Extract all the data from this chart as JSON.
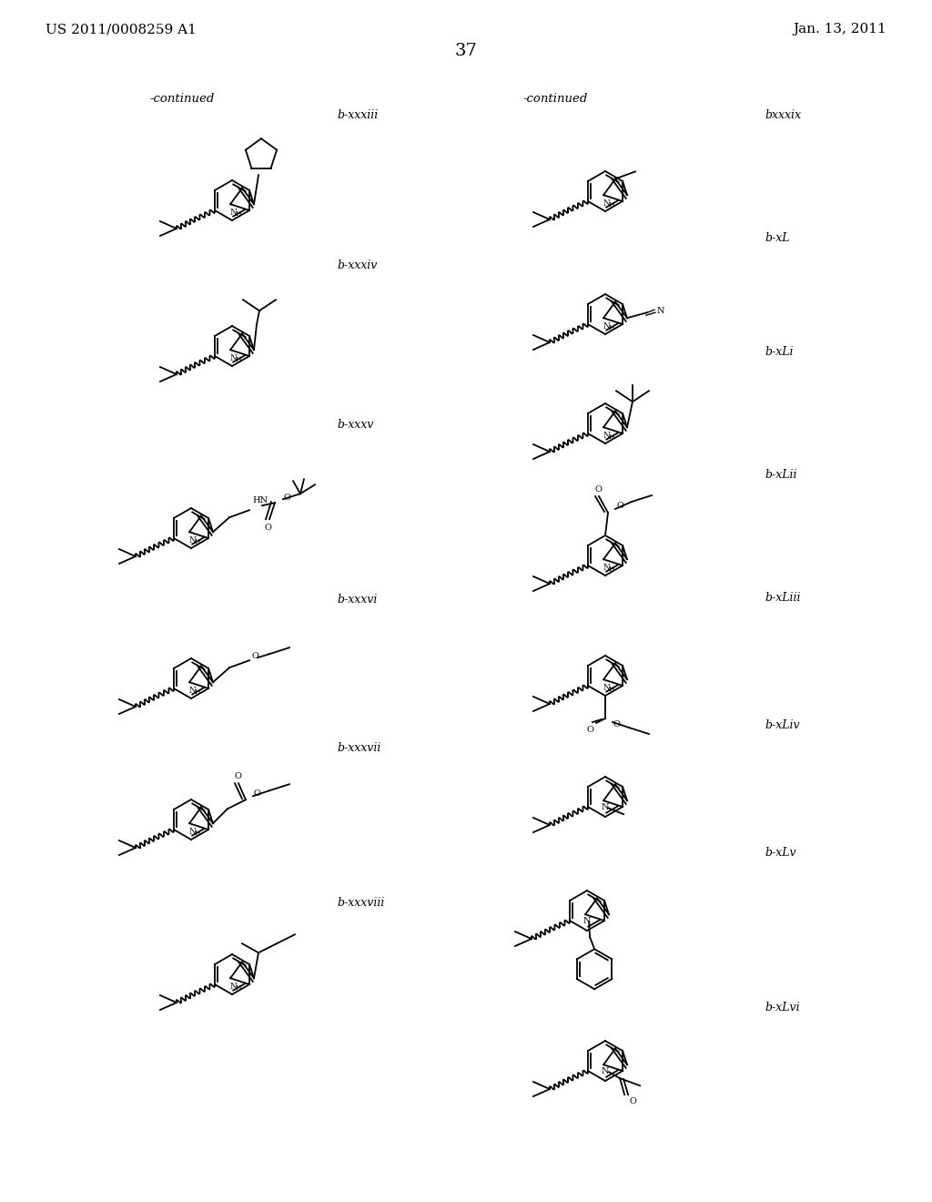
{
  "page_header_left": "US 2011/0008259 A1",
  "page_header_right": "Jan. 13, 2011",
  "page_number": "37",
  "continued_left": "-continued",
  "continued_right": "-continued",
  "background_color": "#ffffff",
  "text_color": "#000000",
  "labels_left": [
    "b-xxxiii",
    "b-xxxiv",
    "b-xxxv",
    "b-xxxvi",
    "b-xxxvii",
    "b-xxxviii"
  ],
  "labels_right": [
    "bxxxix",
    "b-xL",
    "b-xLi",
    "b-xLii",
    "b-xLiii",
    "b-xLiv",
    "b-xLv",
    "b-xLvi"
  ],
  "font_size_header": 11,
  "font_size_label": 9,
  "font_size_page_num": 14
}
